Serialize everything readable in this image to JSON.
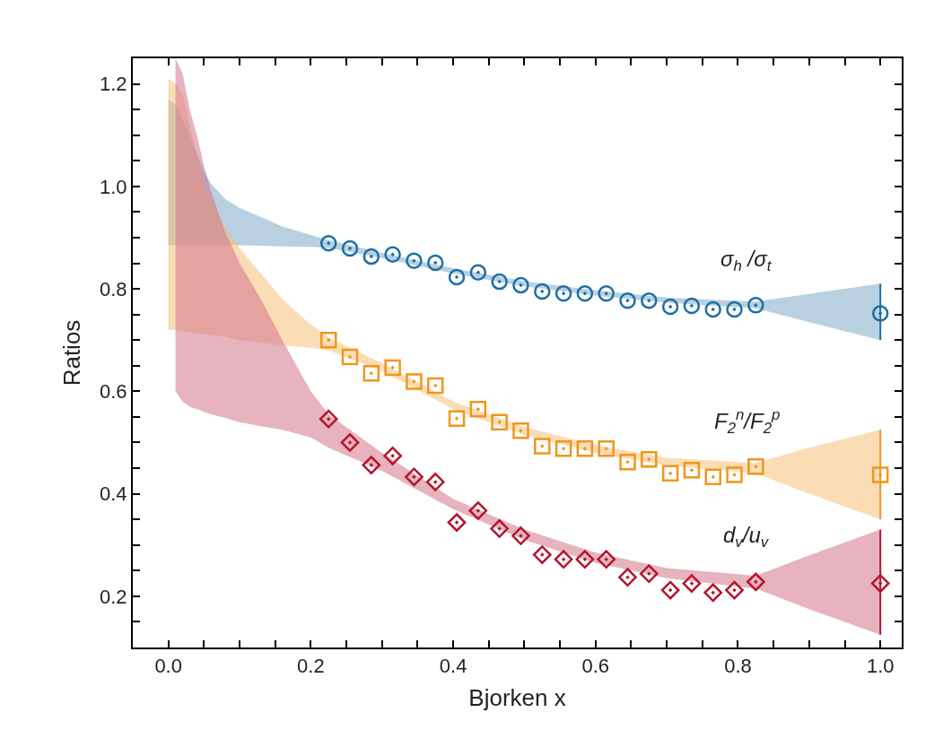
{
  "chart_data": {
    "type": "scatter",
    "xlabel": "Bjorken x",
    "ylabel": "Ratios",
    "xlim": [
      -0.05,
      1.03
    ],
    "ylim": [
      0.1,
      1.25
    ],
    "xticks": [
      {
        "value": 0,
        "label": "0.0"
      },
      {
        "value": 0.05,
        "label": null
      },
      {
        "value": 0.1,
        "label": null
      },
      {
        "value": 0.15,
        "label": null
      },
      {
        "value": 0.2,
        "label": "0.2"
      },
      {
        "value": 0.25,
        "label": null
      },
      {
        "value": 0.3,
        "label": null
      },
      {
        "value": 0.35,
        "label": null
      },
      {
        "value": 0.4,
        "label": "0.4"
      },
      {
        "value": 0.45,
        "label": null
      },
      {
        "value": 0.5,
        "label": null
      },
      {
        "value": 0.55,
        "label": null
      },
      {
        "value": 0.6,
        "label": "0.6"
      },
      {
        "value": 0.65,
        "label": null
      },
      {
        "value": 0.7,
        "label": null
      },
      {
        "value": 0.75,
        "label": null
      },
      {
        "value": 0.8,
        "label": "0.8"
      },
      {
        "value": 0.85,
        "label": null
      },
      {
        "value": 0.9,
        "label": null
      },
      {
        "value": 0.95,
        "label": null
      },
      {
        "value": 1,
        "label": "1.0"
      }
    ],
    "yticks": [
      {
        "value": 0.15,
        "label": null
      },
      {
        "value": 0.2,
        "label": "0.2"
      },
      {
        "value": 0.25,
        "label": null
      },
      {
        "value": 0.3,
        "label": null
      },
      {
        "value": 0.35,
        "label": null
      },
      {
        "value": 0.4,
        "label": "0.4"
      },
      {
        "value": 0.45,
        "label": null
      },
      {
        "value": 0.5,
        "label": null
      },
      {
        "value": 0.55,
        "label": null
      },
      {
        "value": 0.6,
        "label": "0.6"
      },
      {
        "value": 0.65,
        "label": null
      },
      {
        "value": 0.7,
        "label": null
      },
      {
        "value": 0.75,
        "label": null
      },
      {
        "value": 0.8,
        "label": "0.8"
      },
      {
        "value": 0.85,
        "label": null
      },
      {
        "value": 0.9,
        "label": null
      },
      {
        "value": 0.95,
        "label": null
      },
      {
        "value": 1,
        "label": "1.0"
      },
      {
        "value": 1.05,
        "label": null
      },
      {
        "value": 1.1,
        "label": null
      },
      {
        "value": 1.15,
        "label": null
      },
      {
        "value": 1.2,
        "label": "1.2"
      }
    ],
    "grid": false,
    "legend": false,
    "series": [
      {
        "type": "line",
        "color": "#7fa9c9",
        "x": [
          0,
          0.01,
          0.02,
          0.03,
          0.04,
          0.05,
          0.06,
          0.08,
          0.1,
          0.13,
          0.16,
          0.2,
          0.225,
          0.3,
          0.4,
          0.5,
          0.6,
          0.7,
          0.825,
          0.9,
          1.0
        ],
        "values": [
          null,
          null,
          null,
          null,
          null,
          null,
          null,
          null,
          null,
          null,
          null,
          null,
          null,
          null,
          null,
          null,
          null,
          null,
          null,
          null,
          null
        ],
        "lower": [
          0.885,
          0.885,
          0.885,
          0.885,
          0.885,
          0.885,
          0.885,
          0.885,
          0.885,
          0.884,
          0.883,
          0.882,
          0.88,
          0.86,
          0.83,
          0.805,
          0.787,
          0.773,
          0.762,
          0.735,
          0.7
        ],
        "upper": [
          1.17,
          1.16,
          1.13,
          1.1,
          1.065,
          1.03,
          1.005,
          0.975,
          0.958,
          0.94,
          0.922,
          0.905,
          0.895,
          0.87,
          0.84,
          0.815,
          0.797,
          0.783,
          0.775,
          0.79,
          0.81
        ]
      },
      {
        "type": "line",
        "color": "#f6c078",
        "x": [
          0,
          0.01,
          0.02,
          0.03,
          0.04,
          0.05,
          0.06,
          0.08,
          0.1,
          0.13,
          0.16,
          0.2,
          0.225,
          0.3,
          0.4,
          0.5,
          0.6,
          0.7,
          0.825,
          0.9,
          1.0
        ],
        "values": [
          null,
          null,
          null,
          null,
          null,
          null,
          null,
          null,
          null,
          null,
          null,
          null,
          null,
          null,
          null,
          null,
          null,
          null,
          null,
          null,
          null
        ],
        "lower": [
          0.72,
          0.72,
          0.718,
          0.716,
          0.714,
          0.712,
          0.71,
          0.706,
          0.7,
          0.695,
          0.69,
          0.685,
          0.68,
          0.64,
          0.565,
          0.515,
          0.48,
          0.455,
          0.44,
          0.4,
          0.35
        ],
        "upper": [
          1.21,
          1.2,
          1.18,
          1.12,
          1.05,
          1.0,
          0.97,
          0.92,
          0.88,
          0.83,
          0.78,
          0.73,
          0.705,
          0.655,
          0.58,
          0.53,
          0.495,
          0.47,
          0.46,
          0.49,
          0.525
        ]
      },
      {
        "type": "line",
        "color": "#d2748a",
        "x": [
          0.01,
          0.02,
          0.03,
          0.04,
          0.05,
          0.06,
          0.08,
          0.1,
          0.13,
          0.16,
          0.2,
          0.225,
          0.3,
          0.4,
          0.5,
          0.6,
          0.7,
          0.825,
          0.9,
          1.0
        ],
        "values": [
          null,
          null,
          null,
          null,
          null,
          null,
          null,
          null,
          null,
          null,
          null,
          null,
          null,
          null,
          null,
          null,
          null,
          null,
          null,
          null
        ],
        "lower": [
          0.6,
          0.58,
          0.57,
          0.565,
          0.56,
          0.555,
          0.548,
          0.54,
          0.532,
          0.525,
          0.51,
          0.49,
          0.445,
          0.37,
          0.31,
          0.265,
          0.235,
          0.215,
          0.175,
          0.125
        ],
        "upper": [
          1.25,
          1.22,
          1.15,
          1.1,
          1.04,
          0.99,
          0.91,
          0.85,
          0.78,
          0.7,
          0.6,
          0.555,
          0.48,
          0.39,
          0.33,
          0.285,
          0.255,
          0.24,
          0.28,
          0.33
        ]
      },
      {
        "name": "σ$_{h}$ /σ$_{t}$",
        "color": "#1b6fa5",
        "marker": "circle",
        "x": [
          0.225,
          0.255,
          0.285,
          0.315,
          0.345,
          0.375,
          0.405,
          0.435,
          0.465,
          0.495,
          0.525,
          0.555,
          0.585,
          0.615,
          0.645,
          0.675,
          0.705,
          0.735,
          0.765,
          0.795,
          0.825,
          1.0
        ],
        "values": [
          0.889,
          0.879,
          0.863,
          0.867,
          0.855,
          0.851,
          0.823,
          0.832,
          0.814,
          0.807,
          0.795,
          0.791,
          0.791,
          0.791,
          0.777,
          0.777,
          0.765,
          0.767,
          0.76,
          0.76,
          0.768,
          0.752
        ],
        "errors": [
          null,
          null,
          null,
          null,
          null,
          null,
          null,
          null,
          null,
          null,
          null,
          null,
          null,
          null,
          null,
          null,
          null,
          null,
          null,
          null,
          null,
          [
            0.7,
            0.81
          ]
        ]
      },
      {
        "name": "F$_{2}$$^{n}$/F$_{2}$$^{p}$",
        "color": "#f0961c",
        "marker": "square",
        "x": [
          0.225,
          0.255,
          0.285,
          0.315,
          0.345,
          0.375,
          0.405,
          0.435,
          0.465,
          0.495,
          0.525,
          0.555,
          0.585,
          0.615,
          0.645,
          0.675,
          0.705,
          0.735,
          0.765,
          0.795,
          0.825,
          1.0
        ],
        "values": [
          0.7,
          0.667,
          0.635,
          0.646,
          0.619,
          0.611,
          0.547,
          0.565,
          0.54,
          0.523,
          0.493,
          0.488,
          0.488,
          0.488,
          0.462,
          0.467,
          0.44,
          0.446,
          0.433,
          0.437,
          0.453,
          0.437
        ],
        "errors": [
          null,
          null,
          null,
          null,
          null,
          null,
          null,
          null,
          null,
          null,
          null,
          null,
          null,
          null,
          null,
          null,
          null,
          null,
          null,
          null,
          null,
          [
            0.35,
            0.525
          ]
        ]
      },
      {
        "name": "d$_{v}$/u$_{v}$",
        "color": "#b5152b",
        "marker": "diamond",
        "x": [
          0.225,
          0.255,
          0.285,
          0.315,
          0.345,
          0.375,
          0.405,
          0.435,
          0.465,
          0.495,
          0.525,
          0.555,
          0.585,
          0.615,
          0.645,
          0.675,
          0.705,
          0.735,
          0.765,
          0.795,
          0.825,
          1.0
        ],
        "values": [
          0.546,
          0.5,
          0.456,
          0.474,
          0.433,
          0.423,
          0.344,
          0.367,
          0.332,
          0.318,
          0.281,
          0.272,
          0.272,
          0.272,
          0.237,
          0.244,
          0.212,
          0.225,
          0.207,
          0.212,
          0.228,
          0.225
        ],
        "errors": [
          null,
          null,
          null,
          null,
          null,
          null,
          null,
          null,
          null,
          null,
          null,
          null,
          null,
          null,
          null,
          null,
          null,
          null,
          null,
          null,
          null,
          [
            0.125,
            0.33
          ]
        ]
      }
    ]
  }
}
